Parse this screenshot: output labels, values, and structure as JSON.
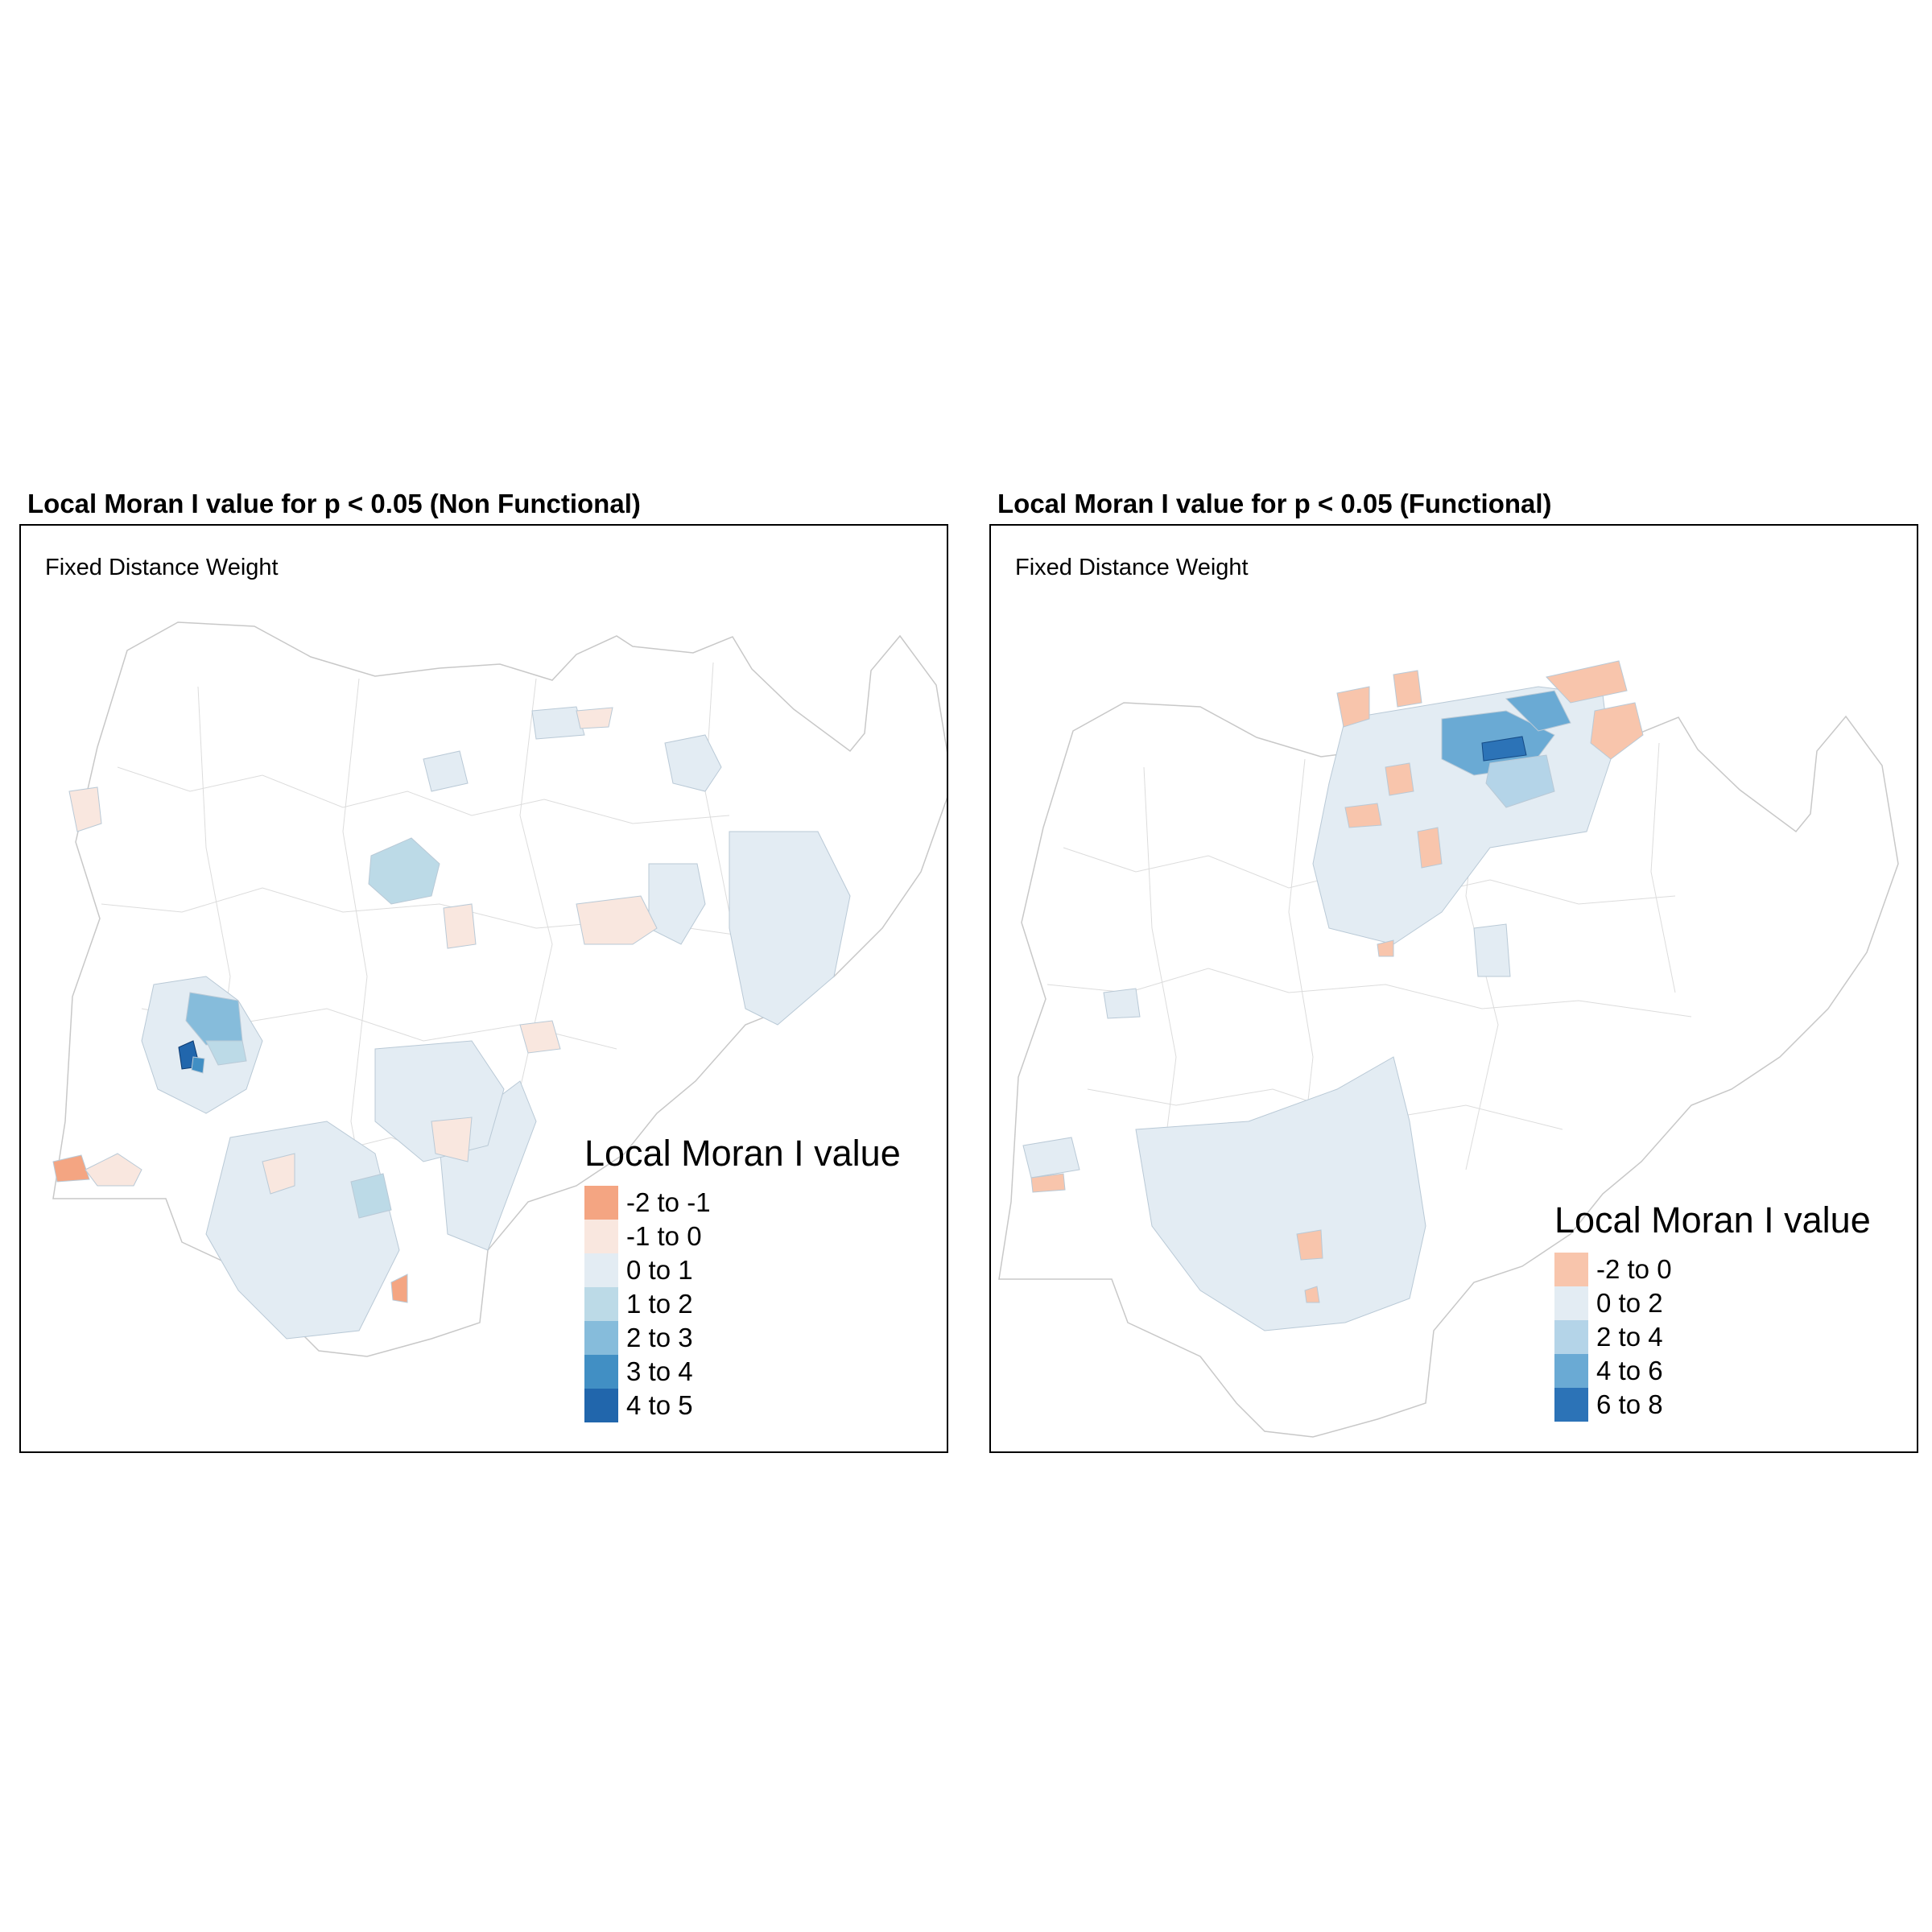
{
  "panels": [
    {
      "title": "Local Moran I value for p < 0.05 (Non Functional)",
      "subtitle": "Fixed Distance Weight",
      "legend": {
        "title": "Local Moran I value",
        "items": [
          {
            "label": "-2 to -1",
            "color": "#f4a582"
          },
          {
            "label": "-1 to 0",
            "color": "#f9e7df"
          },
          {
            "label": "0 to 1",
            "color": "#e3ecf3"
          },
          {
            "label": "1 to 2",
            "color": "#bcdae7"
          },
          {
            "label": "2 to 3",
            "color": "#86bcdb"
          },
          {
            "label": "3 to 4",
            "color": "#418fc4"
          },
          {
            "label": "4 to 5",
            "color": "#2166ac"
          }
        ]
      }
    },
    {
      "title": "Local Moran I value for p < 0.05 (Functional)",
      "subtitle": "Fixed Distance Weight",
      "legend": {
        "title": "Local Moran I value",
        "items": [
          {
            "label": "-2 to 0",
            "color": "#f8c5ac"
          },
          {
            "label": "0 to 2",
            "color": "#e3ecf3"
          },
          {
            "label": "2 to 4",
            "color": "#b4d4e8"
          },
          {
            "label": "4 to 6",
            "color": "#6aaad4"
          },
          {
            "label": "6 to 8",
            "color": "#2c73b7"
          }
        ]
      }
    }
  ]
}
